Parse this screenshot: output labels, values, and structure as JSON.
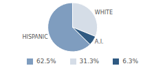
{
  "chart_data": {
    "type": "pie",
    "categories": [
      "HISPANIC",
      "WHITE",
      "A.I."
    ],
    "values": [
      62.5,
      31.3,
      6.3
    ],
    "value_labels": [
      "62.5%",
      "31.3%",
      "6.3%"
    ],
    "colors": [
      "#7f9dbf",
      "#d5dde7",
      "#2f5a82"
    ]
  }
}
